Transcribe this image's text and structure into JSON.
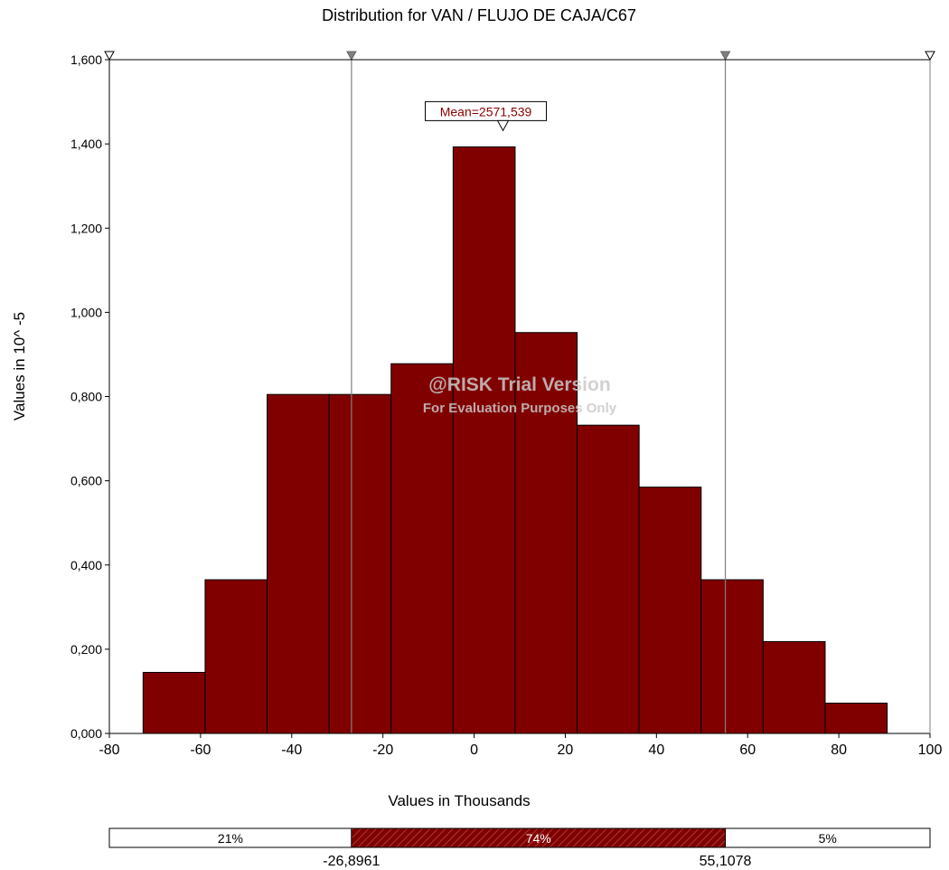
{
  "chart_data": {
    "type": "bar",
    "title": "Distribution for VAN / FLUJO DE CAJA/C67",
    "xlabel": "Values in Thousands",
    "ylabel": "Values in 10^ -5",
    "xlim": [
      -80,
      100
    ],
    "ylim": [
      0,
      1.6
    ],
    "x_ticks": [
      "-80",
      "-60",
      "-40",
      "-20",
      "0",
      "20",
      "40",
      "60",
      "80",
      "100"
    ],
    "y_ticks": [
      "0,000",
      "0,200",
      "0,400",
      "0,600",
      "0,800",
      "1,000",
      "1,200",
      "1,400",
      "1,600"
    ],
    "bins": [
      {
        "from": -72.6,
        "to": -59.0,
        "value": 0.145
      },
      {
        "from": -59.0,
        "to": -45.4,
        "value": 0.365
      },
      {
        "from": -45.4,
        "to": -31.8,
        "value": 0.805
      },
      {
        "from": -31.8,
        "to": -18.2,
        "value": 0.805
      },
      {
        "from": -18.2,
        "to": -4.6,
        "value": 0.878
      },
      {
        "from": -4.6,
        "to": 9.0,
        "value": 1.393
      },
      {
        "from": 9.0,
        "to": 22.6,
        "value": 0.952
      },
      {
        "from": 22.6,
        "to": 36.2,
        "value": 0.732
      },
      {
        "from": 36.2,
        "to": 49.8,
        "value": 0.585
      },
      {
        "from": 49.8,
        "to": 63.4,
        "value": 0.365
      },
      {
        "from": 63.4,
        "to": 77.0,
        "value": 0.218
      },
      {
        "from": 77.0,
        "to": 90.6,
        "value": 0.072
      }
    ],
    "bar_color": "#800000",
    "mean_label": "Mean=2571,539",
    "mean_value": 2.571539,
    "left_delimiter": -26.8961,
    "right_delimiter": 55.1078,
    "left_delimiter_label": "-26,8961",
    "right_delimiter_label": "55,1078",
    "percent_bar": {
      "left_label": "21%",
      "middle_label": "74%",
      "right_label": "5%"
    },
    "watermark": {
      "line1": "@RISK Trial Version",
      "line2": "For Evaluation Purposes Only"
    },
    "grid": false,
    "legend": "none"
  }
}
